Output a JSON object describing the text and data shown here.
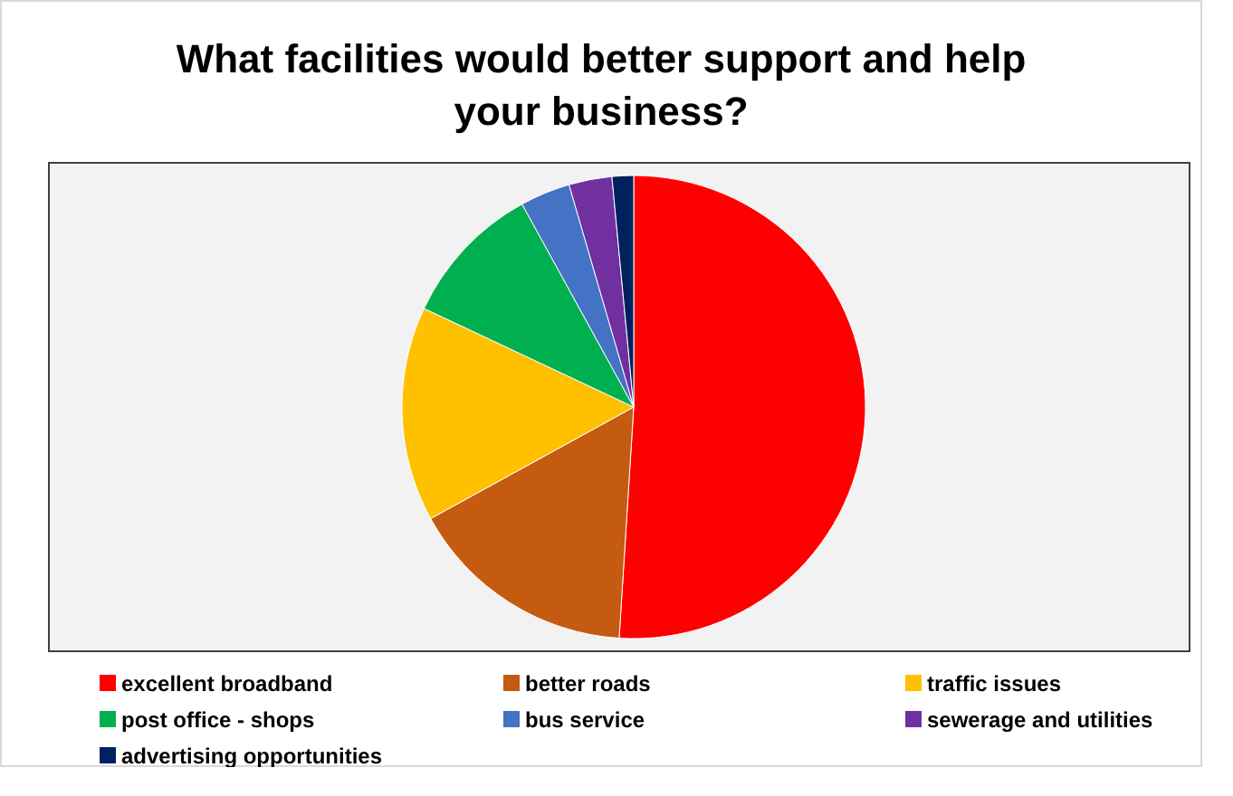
{
  "chart_data": {
    "type": "pie",
    "title": "What facilities would better support and help your business?",
    "categories": [
      "excellent broadband",
      "better roads",
      "traffic issues",
      "post office - shops",
      "bus service",
      "sewerage and utilities",
      "advertising opportunities"
    ],
    "values": [
      51,
      16,
      15,
      10,
      3.5,
      3,
      1.5
    ],
    "colors": [
      "#ff0000",
      "#c55a11",
      "#ffc000",
      "#00b050",
      "#4472c4",
      "#7030a0",
      "#002060"
    ],
    "legend": "bottom"
  }
}
